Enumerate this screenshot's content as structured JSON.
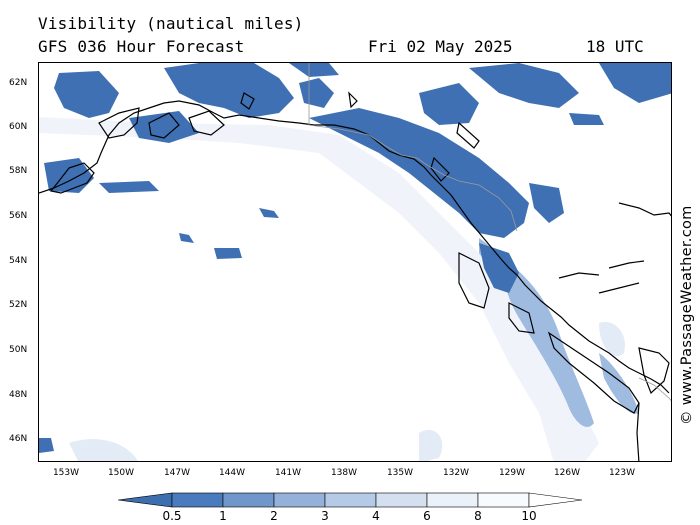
{
  "header": {
    "title": "Visibility (nautical miles)",
    "model": "GFS 036 Hour Forecast",
    "date": "Fri 02 May 2025",
    "time": "18 UTC"
  },
  "credit": "© www.PassageWeather.com",
  "axes": {
    "lat_labels": [
      "62N",
      "60N",
      "58N",
      "56N",
      "54N",
      "52N",
      "50N",
      "48N",
      "46N"
    ],
    "lon_labels": [
      "153W",
      "150W",
      "147W",
      "144W",
      "141W",
      "138W",
      "135W",
      "132W",
      "129W",
      "126W",
      "123W"
    ]
  },
  "legend": {
    "levels": [
      "0.5",
      "1",
      "2",
      "3",
      "4",
      "6",
      "8",
      "10"
    ],
    "colors": [
      "#3d6eb0",
      "#4a7cbd",
      "#6f97cb",
      "#93b1d9",
      "#b5cae6",
      "#d4e0f0",
      "#ebf1f8",
      "#ffffff"
    ]
  },
  "colors": {
    "low_vis": "#3d6eb0",
    "mid_vis": "#8eaedb",
    "light_vis": "#dfe8f4",
    "coast": "#000000",
    "border": "#999999"
  }
}
